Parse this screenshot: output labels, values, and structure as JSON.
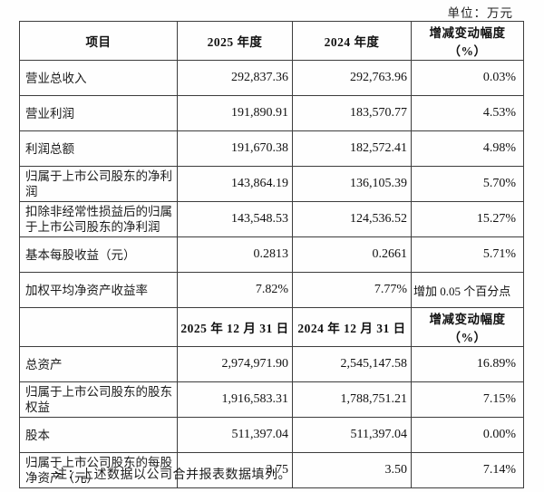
{
  "page": {
    "unit_label": "单位：万元",
    "note": "注：上述数据以公司合并报表数据填列。"
  },
  "table": {
    "columns": [
      "item",
      "year_2025",
      "year_2024",
      "change"
    ],
    "sections": [
      {
        "header": [
          "项目",
          "2025 年度",
          "2024 年度",
          "增减变动幅度（%）"
        ],
        "rows": [
          {
            "cells": [
              "营业总收入",
              "292,837.36",
              "292,763.96",
              "0.03%"
            ]
          },
          {
            "cells": [
              "营业利润",
              "191,890.91",
              "183,570.77",
              "4.53%"
            ]
          },
          {
            "cells": [
              "利润总额",
              "191,670.38",
              "182,572.41",
              "4.98%"
            ]
          },
          {
            "cells": [
              "归属于上市公司股东的净利润",
              "143,864.19",
              "136,105.39",
              "5.70%"
            ]
          },
          {
            "cells": [
              "扣除非经常性损益后的归属于上市公司股东的净利润",
              "143,548.53",
              "124,536.52",
              "15.27%"
            ]
          },
          {
            "cells": [
              "基本每股收益（元）",
              "0.2813",
              "0.2661",
              "5.71%"
            ]
          },
          {
            "cells": [
              "加权平均净资产收益率",
              "7.82%",
              "7.77%",
              "增加 0.05 个百分点"
            ]
          }
        ]
      },
      {
        "header": [
          "",
          "2025 年 12 月 31 日",
          "2024 年 12 月 31 日",
          "增减变动幅度（%）"
        ],
        "rows": [
          {
            "cells": [
              "总资产",
              "2,974,971.90",
              "2,545,147.58",
              "16.89%"
            ]
          },
          {
            "cells": [
              "归属于上市公司股东的股东权益",
              "1,916,583.31",
              "1,788,751.21",
              "7.15%"
            ]
          },
          {
            "cells": [
              "股本",
              "511,397.04",
              "511,397.04",
              "0.00%"
            ]
          },
          {
            "cells": [
              "归属于上市公司股东的每股净资产（元）",
              "3.75",
              "3.50",
              "7.14%"
            ]
          }
        ]
      }
    ]
  }
}
